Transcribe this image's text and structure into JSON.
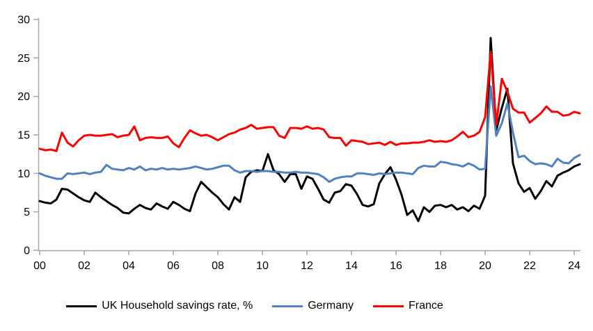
{
  "chart_data": {
    "type": "line",
    "title": "",
    "frequency": "quarterly",
    "x_start": "2000Q1",
    "x_end": "2024Q2",
    "x_tick_labels": [
      "00",
      "02",
      "04",
      "06",
      "08",
      "10",
      "12",
      "14",
      "16",
      "18",
      "20",
      "22",
      "24"
    ],
    "y_ticks": [
      0,
      5,
      10,
      15,
      20,
      25,
      30
    ],
    "ylim": [
      0,
      30
    ],
    "grid": false,
    "legend_position": "bottom",
    "axis_color": "#A6A6A6",
    "text_color": "#000000",
    "background_color": "#FFFFFF",
    "series": [
      {
        "name": "UK Household savings rate, %",
        "color": "#000000",
        "values": [
          6.4,
          6.2,
          6.1,
          6.6,
          8.0,
          7.9,
          7.4,
          6.9,
          6.5,
          6.3,
          7.5,
          6.9,
          6.4,
          5.9,
          5.5,
          4.9,
          4.8,
          5.4,
          5.9,
          5.5,
          5.3,
          6.1,
          5.7,
          5.4,
          6.3,
          5.9,
          5.4,
          5.1,
          7.4,
          8.9,
          8.2,
          7.5,
          6.9,
          6.0,
          5.3,
          6.9,
          6.3,
          9.5,
          10.2,
          10.4,
          10.3,
          12.5,
          10.4,
          9.9,
          8.9,
          9.9,
          9.9,
          8.0,
          9.6,
          9.3,
          8.0,
          6.6,
          6.2,
          7.5,
          7.7,
          8.6,
          8.4,
          7.3,
          5.9,
          5.7,
          6.0,
          8.7,
          9.9,
          10.8,
          9.2,
          7.2,
          4.6,
          5.2,
          3.8,
          5.6,
          5.0,
          5.8,
          5.9,
          5.6,
          5.9,
          5.3,
          5.6,
          5.1,
          5.8,
          5.4,
          7.1,
          27.6,
          15.6,
          18.5,
          21.0,
          11.3,
          8.7,
          7.6,
          8.1,
          6.7,
          7.7,
          9.0,
          8.3,
          9.7,
          10.1,
          10.4,
          10.9,
          11.2
        ]
      },
      {
        "name": "Germany",
        "color": "#4F81BD",
        "values": [
          10.0,
          9.7,
          9.5,
          9.3,
          9.3,
          10.0,
          9.9,
          10.0,
          10.1,
          9.9,
          10.1,
          10.2,
          11.1,
          10.6,
          10.5,
          10.4,
          10.7,
          10.5,
          10.9,
          10.4,
          10.6,
          10.5,
          10.7,
          10.5,
          10.6,
          10.5,
          10.6,
          10.7,
          10.9,
          10.7,
          10.5,
          10.6,
          10.8,
          11.0,
          11.0,
          10.4,
          10.1,
          10.3,
          10.3,
          10.2,
          10.3,
          10.3,
          10.2,
          10.2,
          10.1,
          10.1,
          10.2,
          10.1,
          10.1,
          10.0,
          9.9,
          9.5,
          8.9,
          9.3,
          9.5,
          9.6,
          9.6,
          10.0,
          10.0,
          9.9,
          9.8,
          10.0,
          9.9,
          10.0,
          10.1,
          10.1,
          10.0,
          9.9,
          10.7,
          11.0,
          10.9,
          10.9,
          11.5,
          11.4,
          11.2,
          11.1,
          10.9,
          11.3,
          11.0,
          10.5,
          10.6,
          21.3,
          14.9,
          16.5,
          19.1,
          15.3,
          12.1,
          12.3,
          11.6,
          11.2,
          11.3,
          11.2,
          10.9,
          11.9,
          11.4,
          11.3,
          12.0,
          12.4
        ]
      },
      {
        "name": "France",
        "color": "#FF0000",
        "values": [
          13.2,
          13.0,
          13.1,
          12.9,
          15.3,
          14.0,
          13.5,
          14.3,
          14.9,
          15.0,
          14.9,
          14.9,
          15.0,
          15.1,
          14.7,
          14.9,
          15.0,
          16.1,
          14.3,
          14.6,
          14.7,
          14.6,
          14.6,
          14.8,
          13.9,
          13.4,
          14.6,
          15.6,
          15.2,
          14.9,
          15.0,
          14.7,
          14.3,
          14.7,
          15.1,
          15.3,
          15.7,
          15.9,
          16.3,
          15.8,
          15.9,
          16.0,
          16.0,
          14.9,
          14.6,
          15.9,
          15.9,
          15.8,
          16.1,
          15.8,
          15.9,
          15.7,
          14.7,
          14.6,
          14.6,
          13.6,
          14.3,
          14.2,
          14.1,
          13.8,
          13.9,
          14.0,
          13.7,
          14.1,
          13.7,
          13.9,
          13.9,
          14.0,
          14.0,
          14.1,
          14.3,
          14.1,
          14.2,
          14.1,
          14.3,
          14.8,
          15.4,
          14.7,
          14.9,
          15.4,
          17.3,
          25.8,
          16.3,
          22.3,
          20.6,
          18.4,
          17.9,
          17.9,
          16.6,
          17.2,
          17.8,
          18.7,
          18.0,
          18.0,
          17.5,
          17.6,
          18.0,
          17.8
        ]
      }
    ]
  },
  "legend": {
    "items": [
      {
        "label": "UK Household savings rate, %",
        "color": "#000000"
      },
      {
        "label": "Germany",
        "color": "#4F81BD"
      },
      {
        "label": "France",
        "color": "#FF0000"
      }
    ]
  }
}
